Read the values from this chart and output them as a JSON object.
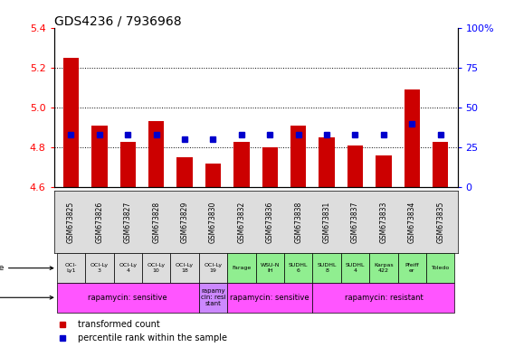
{
  "title": "GDS4236 / 7936968",
  "samples": [
    "GSM673825",
    "GSM673826",
    "GSM673827",
    "GSM673828",
    "GSM673829",
    "GSM673830",
    "GSM673832",
    "GSM673836",
    "GSM673838",
    "GSM673831",
    "GSM673837",
    "GSM673833",
    "GSM673834",
    "GSM673835"
  ],
  "red_values": [
    5.25,
    4.91,
    4.83,
    4.93,
    4.75,
    4.72,
    4.83,
    4.8,
    4.91,
    4.85,
    4.81,
    4.76,
    5.09,
    4.83
  ],
  "blue_pct": [
    33,
    33,
    33,
    33,
    30,
    30,
    33,
    33,
    33,
    33,
    33,
    33,
    40,
    33
  ],
  "ylim": [
    4.6,
    5.4
  ],
  "y2lim": [
    0,
    100
  ],
  "yticks": [
    4.6,
    4.8,
    5.0,
    5.2,
    5.4
  ],
  "y2ticks": [
    0,
    25,
    50,
    75,
    100
  ],
  "cell_lines": [
    "OCI-\nLy1",
    "OCI-Ly\n3",
    "OCI-Ly\n4",
    "OCI-Ly\n10",
    "OCI-Ly\n18",
    "OCI-Ly\n19",
    "Farage",
    "WSU-N\nIH",
    "SUDHL\n6",
    "SUDHL\n8",
    "SUDHL\n4",
    "Karpas\n422",
    "Pfeiff\ner",
    "Toledo"
  ],
  "cell_line_colors": [
    "#dddddd",
    "#dddddd",
    "#dddddd",
    "#dddddd",
    "#dddddd",
    "#dddddd",
    "#90ee90",
    "#90ee90",
    "#90ee90",
    "#90ee90",
    "#90ee90",
    "#90ee90",
    "#90ee90",
    "#90ee90"
  ],
  "bar_color": "#cc0000",
  "dot_color": "#0000cc",
  "baseline": 4.6,
  "bg_color": "#ffffff",
  "title_fontsize": 10,
  "tick_fontsize": 8,
  "label_fontsize": 7,
  "other_groups": [
    {
      "label": "rapamycin: sensitive",
      "start": 0,
      "end": 5,
      "color": "#ff55ff"
    },
    {
      "label": "rapamy\ncin: resi\nstant",
      "start": 5,
      "end": 6,
      "color": "#cc88ff"
    },
    {
      "label": "rapamycin: sensitive",
      "start": 6,
      "end": 9,
      "color": "#ff55ff"
    },
    {
      "label": "rapamycin: resistant",
      "start": 9,
      "end": 14,
      "color": "#ff55ff"
    }
  ]
}
